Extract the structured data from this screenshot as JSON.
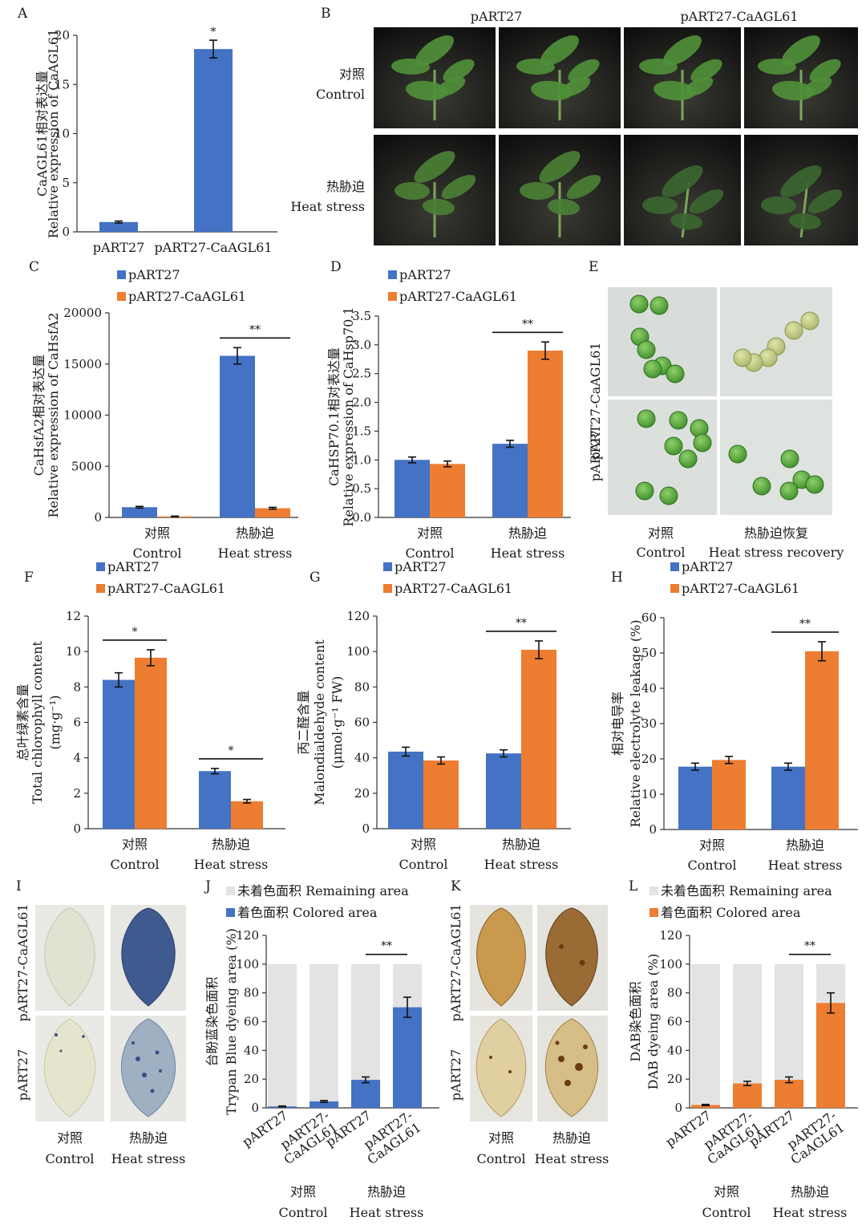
{
  "colors": {
    "blue": "#4472c4",
    "orange": "#ed7d31",
    "remaining": "#e3e3e3",
    "photo_bg": "#181818",
    "plate": "#e2e6e3"
  },
  "photos": {
    "B": {
      "cols": [
        "pART27",
        "pART27-CaAGL61"
      ],
      "rows": [
        [
          "对照",
          "Control"
        ],
        [
          "热胁迫",
          "Heat stress"
        ]
      ]
    },
    "E": {
      "rows": [
        "pART27-CaAGL61",
        "pART27"
      ],
      "cols": [
        [
          "对照",
          "Control"
        ],
        [
          "热胁迫恢复",
          "Heat stress recovery"
        ]
      ]
    },
    "I": {
      "rows": [
        "pART27-CaAGL61",
        "pART27"
      ],
      "cols": [
        [
          "对照",
          "Control"
        ],
        [
          "热胁迫",
          "Heat stress"
        ]
      ]
    },
    "K": {
      "rows": [
        "pART27-CaAGL61",
        "pART27"
      ],
      "cols": [
        [
          "对照",
          "Control"
        ],
        [
          "热胁迫",
          "Heat stress"
        ]
      ]
    }
  },
  "chart_data": [
    {
      "panel": "A",
      "type": "bar",
      "categories": [
        "pART27",
        "pART27-CaAGL61"
      ],
      "values": [
        1.0,
        18.6
      ],
      "errors": [
        0.1,
        0.9
      ],
      "ylim": [
        0,
        20
      ],
      "yticks": [
        0,
        5,
        10,
        15,
        20
      ],
      "ylabel_lines": [
        "CaAGL61相对表达量",
        "Relative expression of CaAGL61"
      ],
      "significance": [
        {
          "index": 1,
          "label": "*"
        }
      ]
    },
    {
      "panel": "C",
      "type": "bar",
      "categories": [
        [
          "对照",
          "Control"
        ],
        [
          "热胁迫",
          "Heat stress"
        ]
      ],
      "series": [
        {
          "name": "pART27",
          "values": [
            1000,
            15800
          ],
          "errors": [
            80,
            800
          ]
        },
        {
          "name": "pART27-CaAGL61",
          "values": [
            100,
            900
          ],
          "errors": [
            30,
            90
          ]
        }
      ],
      "ylim": [
        0,
        20000
      ],
      "yticks": [
        0,
        5000,
        10000,
        15000,
        20000
      ],
      "ylabel_lines": [
        "CaHsfA2相对表达量",
        "Relative expression of CaHsfA2"
      ],
      "significance": [
        {
          "group": 1,
          "label": "**"
        }
      ]
    },
    {
      "panel": "D",
      "type": "bar",
      "categories": [
        [
          "对照",
          "Control"
        ],
        [
          "热胁迫",
          "Heat stress"
        ]
      ],
      "series": [
        {
          "name": "pART27",
          "values": [
            1.0,
            1.28
          ],
          "errors": [
            0.05,
            0.06
          ]
        },
        {
          "name": "pART27-CaAGL61",
          "values": [
            0.93,
            2.9
          ],
          "errors": [
            0.05,
            0.15
          ]
        }
      ],
      "ylim": [
        0,
        3.5
      ],
      "yticks": [
        0,
        0.5,
        1.0,
        1.5,
        2.0,
        2.5,
        3.0,
        3.5
      ],
      "ylabel_lines": [
        "CaHSP70.1相对表达量",
        "Relative expression of CaHsp70.1"
      ],
      "significance": [
        {
          "group": 1,
          "label": "**"
        }
      ]
    },
    {
      "panel": "F",
      "type": "bar",
      "categories": [
        [
          "对照",
          "Control"
        ],
        [
          "热胁迫",
          "Heat stress"
        ]
      ],
      "series": [
        {
          "name": "pART27",
          "values": [
            8.4,
            3.25
          ],
          "errors": [
            0.4,
            0.15
          ]
        },
        {
          "name": "pART27-CaAGL61",
          "values": [
            9.65,
            1.55
          ],
          "errors": [
            0.45,
            0.1
          ]
        }
      ],
      "ylim": [
        0,
        12
      ],
      "yticks": [
        0,
        2,
        4,
        6,
        8,
        10,
        12
      ],
      "ylabel_lines": [
        "总叶绿素含量",
        "Total chlorophyll content",
        "(mg·g⁻¹)"
      ],
      "significance": [
        {
          "group": 0,
          "label": "*"
        },
        {
          "group": 1,
          "label": "*"
        }
      ]
    },
    {
      "panel": "G",
      "type": "bar",
      "categories": [
        [
          "对照",
          "Control"
        ],
        [
          "热胁迫",
          "Heat stress"
        ]
      ],
      "series": [
        {
          "name": "pART27",
          "values": [
            43.5,
            42.5
          ],
          "errors": [
            2.5,
            2.0
          ]
        },
        {
          "name": "pART27-CaAGL61",
          "values": [
            38.5,
            101
          ],
          "errors": [
            2.0,
            5.0
          ]
        }
      ],
      "ylim": [
        0,
        120
      ],
      "yticks": [
        0,
        20,
        40,
        60,
        80,
        100,
        120
      ],
      "ylabel_lines": [
        "丙二醛含量",
        "Malondialdehyde content",
        "(μmol·g⁻¹ FW)"
      ],
      "significance": [
        {
          "group": 1,
          "label": "**"
        }
      ]
    },
    {
      "panel": "H",
      "type": "bar",
      "categories": [
        [
          "对照",
          "Control"
        ],
        [
          "热胁迫",
          "Heat stress"
        ]
      ],
      "series": [
        {
          "name": "pART27",
          "values": [
            17.8,
            17.8
          ],
          "errors": [
            1.0,
            1.0
          ]
        },
        {
          "name": "pART27-CaAGL61",
          "values": [
            19.7,
            50.5
          ],
          "errors": [
            1.0,
            2.7
          ]
        }
      ],
      "ylim": [
        0,
        60
      ],
      "yticks": [
        0,
        10,
        20,
        30,
        40,
        50,
        60
      ],
      "ylabel_lines": [
        "相对电导率",
        "Relative electrolyte leakage (%)"
      ],
      "significance": [
        {
          "group": 1,
          "label": "**"
        }
      ]
    },
    {
      "panel": "J",
      "type": "stacked-bar",
      "categories": [
        "pART27",
        "pART27-CaAGL61",
        "pART27",
        "pART27-CaAGL61"
      ],
      "groups": [
        [
          "对照",
          "Control"
        ],
        [
          "热胁迫",
          "Heat stress"
        ]
      ],
      "series": [
        {
          "name": "着色面积 Colored area",
          "values": [
            1.0,
            4.5,
            19.5,
            70
          ],
          "errors": [
            0.3,
            0.6,
            2.0,
            7.0
          ]
        },
        {
          "name": "未着色面积 Remaining area",
          "values": [
            99,
            95.5,
            80.5,
            30
          ]
        }
      ],
      "ylim": [
        0,
        120
      ],
      "yticks": [
        0,
        20,
        40,
        60,
        80,
        100,
        120
      ],
      "ylabel_lines": [
        "台盼蓝染色面积",
        "Trypan Blue dyeing area (%)"
      ],
      "significance": [
        {
          "from": 2,
          "to": 3,
          "label": "**"
        }
      ]
    },
    {
      "panel": "L",
      "type": "stacked-bar",
      "categories": [
        "pART27",
        "pART27-CaAGL61",
        "pART27",
        "pART27-CaAGL61"
      ],
      "groups": [
        [
          "对照",
          "Control"
        ],
        [
          "热胁迫",
          "Heat stress"
        ]
      ],
      "series": [
        {
          "name": "着色面积 Colored area",
          "values": [
            2.0,
            17.0,
            19.5,
            73
          ],
          "errors": [
            0.4,
            1.5,
            2.0,
            7.0
          ]
        },
        {
          "name": "未着色面积 Remaining area",
          "values": [
            98,
            83,
            80.5,
            27
          ]
        }
      ],
      "ylim": [
        0,
        120
      ],
      "yticks": [
        0,
        20,
        40,
        60,
        80,
        100,
        120
      ],
      "ylabel_lines": [
        "DAB染色面积",
        "DAB dyeing area (%)"
      ],
      "significance": [
        {
          "from": 2,
          "to": 3,
          "label": "**"
        }
      ]
    }
  ]
}
